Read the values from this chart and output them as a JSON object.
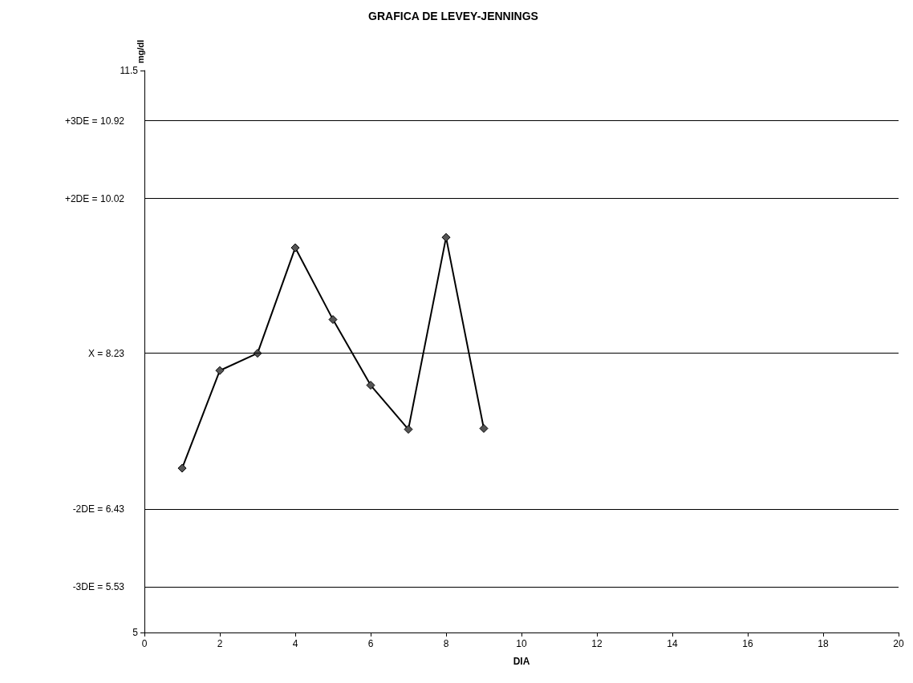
{
  "chart_data": {
    "type": "line",
    "title": "GRAFICA DE LEVEY-JENNINGS",
    "xlabel": "DIA",
    "ylabel": "mg/dl",
    "x": [
      1,
      2,
      3,
      4,
      5,
      6,
      7,
      8,
      9
    ],
    "series": [
      {
        "color": "#000000",
        "values": [
          6.9,
          8.03,
          8.23,
          9.45,
          8.62,
          7.86,
          7.35,
          9.57,
          7.36
        ]
      }
    ],
    "xlim": [
      0,
      20
    ],
    "xticks": [
      0,
      2,
      4,
      6,
      8,
      10,
      12,
      14,
      16,
      18,
      20
    ],
    "ylim": [
      5,
      11.5
    ],
    "yticks": [
      5,
      11.5
    ],
    "ref_lines": [
      {
        "axis": "y",
        "value": 10.92,
        "label": "+3DE = 10.92",
        "color": "#000000"
      },
      {
        "axis": "y",
        "value": 10.02,
        "label": "+2DE = 10.02",
        "color": "#000000"
      },
      {
        "axis": "y",
        "value": 8.23,
        "label": "X = 8.23",
        "color": "#000000"
      },
      {
        "axis": "y",
        "value": 6.43,
        "label": "-2DE = 6.43",
        "color": "#000000"
      },
      {
        "axis": "y",
        "value": 5.53,
        "label": "-3DE = 5.53",
        "color": "#000000"
      }
    ],
    "marker": "diamond",
    "line_style": "solid"
  }
}
